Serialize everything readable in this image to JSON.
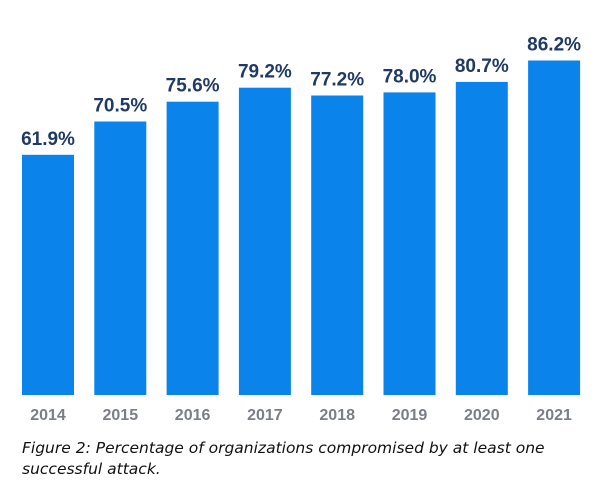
{
  "chart_data": {
    "type": "bar",
    "categories": [
      "2014",
      "2015",
      "2016",
      "2017",
      "2018",
      "2019",
      "2020",
      "2021"
    ],
    "values": [
      61.9,
      70.5,
      75.6,
      79.2,
      77.2,
      78.0,
      80.7,
      86.2
    ],
    "data_labels": [
      "61.9%",
      "70.5%",
      "75.6%",
      "79.2%",
      "77.2%",
      "78.0%",
      "80.7%",
      "86.2%"
    ],
    "ylim": [
      0,
      100
    ],
    "grid": false,
    "legend": "none",
    "bar_color": "#0a84ea"
  },
  "caption": "Figure 2: Percentage of organizations compromised by at least one successful attack."
}
